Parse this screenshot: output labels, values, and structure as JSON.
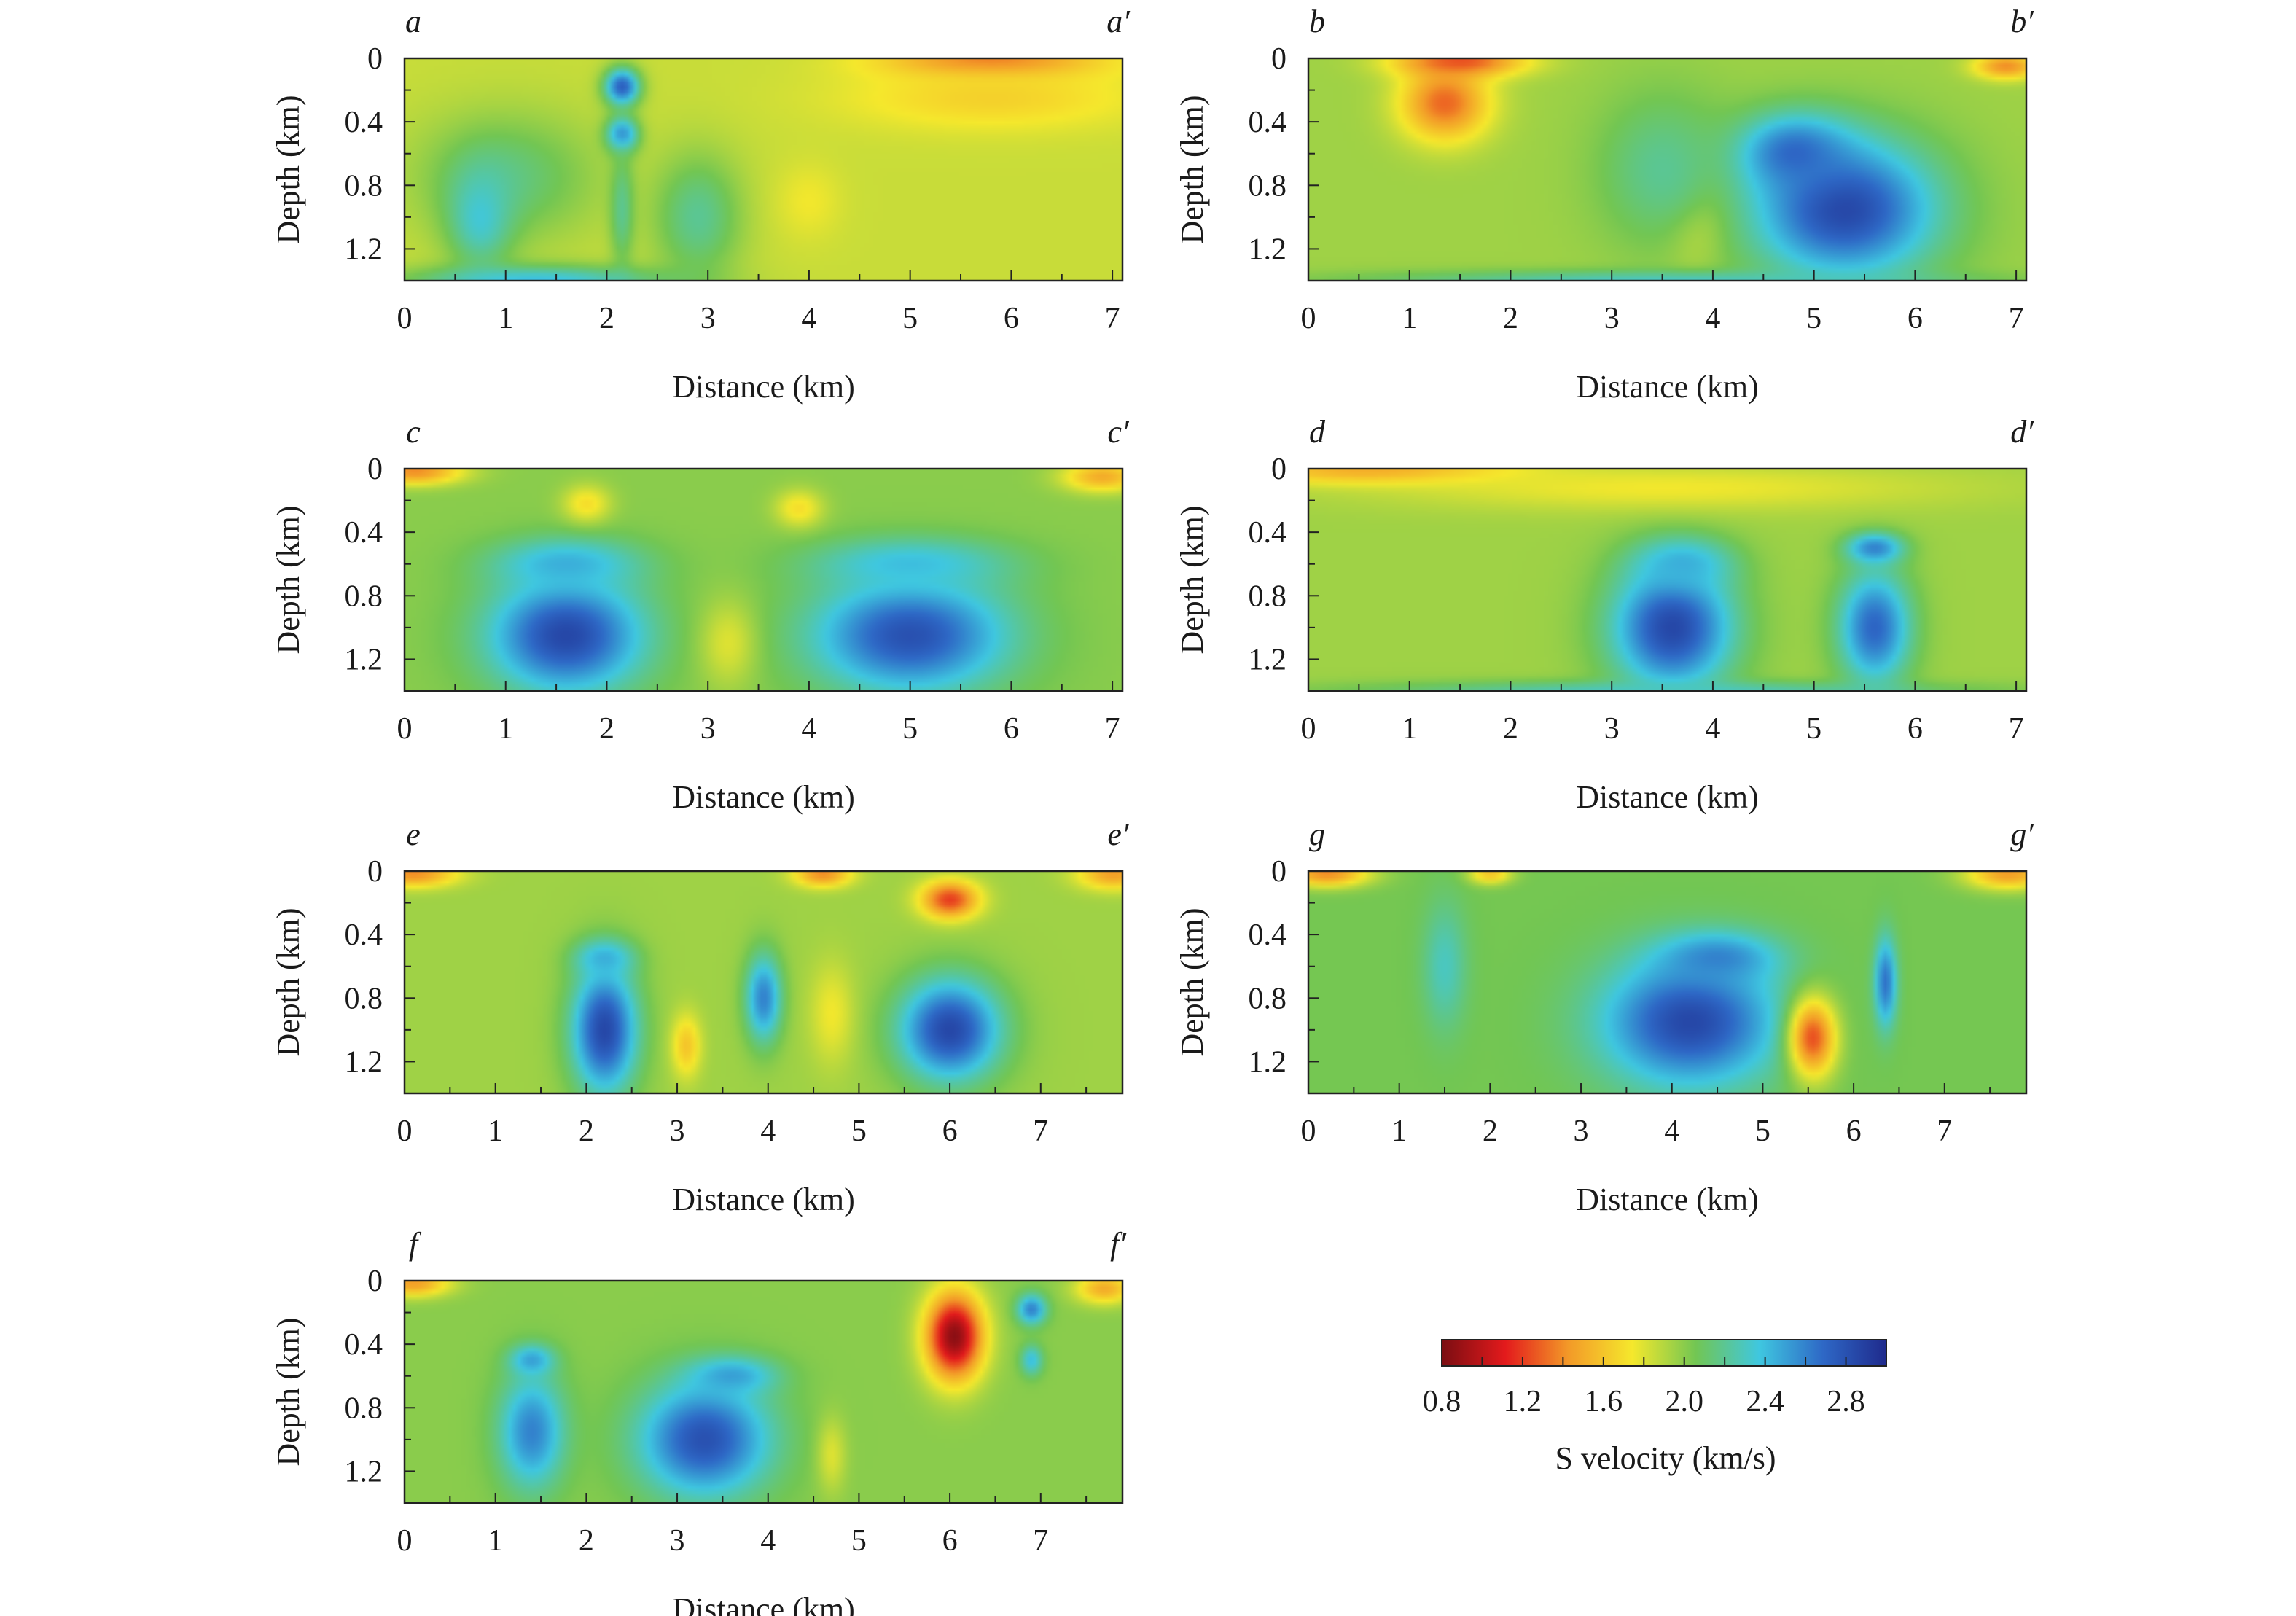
{
  "chart_data": [
    {
      "type": "heatmap",
      "id": "a",
      "label_left": "a",
      "label_right": "a′",
      "xlabel": "Distance (km)",
      "ylabel": "Depth (km)",
      "xlim": [
        0,
        7.1
      ],
      "ylim": [
        0,
        1.4
      ],
      "x_ticks": [
        "0",
        "1",
        "2",
        "3",
        "4",
        "5",
        "6",
        "7"
      ],
      "y_ticks": [
        "0",
        "0.4",
        "0.8",
        "1.2"
      ],
      "background_velocity": 1.85,
      "anomalies": [
        {
          "x": 2.15,
          "y": 0.18,
          "rx": 0.22,
          "ry": 0.15,
          "v": 2.75
        },
        {
          "x": 2.15,
          "y": 0.48,
          "rx": 0.2,
          "ry": 0.14,
          "v": 2.65
        },
        {
          "x": 2.15,
          "y": 0.95,
          "rx": 0.15,
          "ry": 0.45,
          "v": 2.2
        },
        {
          "x": 1.0,
          "y": 0.75,
          "rx": 1.1,
          "ry": 0.5,
          "v": 2.15
        },
        {
          "x": 0.75,
          "y": 1.0,
          "rx": 0.4,
          "ry": 0.4,
          "v": 2.35
        },
        {
          "x": 2.9,
          "y": 1.0,
          "rx": 0.55,
          "ry": 0.5,
          "v": 2.2
        },
        {
          "x": 4.0,
          "y": 0.9,
          "rx": 0.4,
          "ry": 0.3,
          "v": 1.75
        },
        {
          "x": 5.8,
          "y": 0.02,
          "rx": 1.3,
          "ry": 0.14,
          "v": 1.3
        },
        {
          "x": 5.8,
          "y": 0.25,
          "rx": 1.8,
          "ry": 0.25,
          "v": 1.65
        },
        {
          "x": 1.3,
          "y": 1.4,
          "rx": 1.6,
          "ry": 0.12,
          "v": 2.4
        }
      ]
    },
    {
      "type": "heatmap",
      "id": "b",
      "label_left": "b",
      "label_right": "b′",
      "xlabel": "Distance (km)",
      "ylabel": "Depth (km)",
      "xlim": [
        0,
        7.1
      ],
      "ylim": [
        0,
        1.4
      ],
      "x_ticks": [
        "0",
        "1",
        "2",
        "3",
        "4",
        "5",
        "6",
        "7"
      ],
      "y_ticks": [
        "0",
        "0.4",
        "0.8",
        "1.2"
      ],
      "background_velocity": 1.95,
      "anomalies": [
        {
          "x": 1.35,
          "y": 0.28,
          "rx": 0.55,
          "ry": 0.3,
          "v": 1.3
        },
        {
          "x": 1.5,
          "y": 0.02,
          "rx": 0.8,
          "ry": 0.12,
          "v": 1.25
        },
        {
          "x": 5.3,
          "y": 0.95,
          "rx": 1.15,
          "ry": 0.55,
          "v": 2.85
        },
        {
          "x": 4.8,
          "y": 0.6,
          "rx": 0.7,
          "ry": 0.3,
          "v": 2.7
        },
        {
          "x": 3.8,
          "y": 1.05,
          "rx": 0.35,
          "ry": 0.35,
          "v": 1.8
        },
        {
          "x": 3.5,
          "y": 0.7,
          "rx": 0.8,
          "ry": 0.6,
          "v": 2.2
        },
        {
          "x": 6.9,
          "y": 0.05,
          "rx": 0.4,
          "ry": 0.1,
          "v": 1.4
        },
        {
          "x": 3.5,
          "y": 1.4,
          "rx": 3.6,
          "ry": 0.08,
          "v": 2.3
        }
      ]
    },
    {
      "type": "heatmap",
      "id": "c",
      "label_left": "c",
      "label_right": "c′",
      "xlabel": "Distance (km)",
      "ylabel": "Depth (km)",
      "xlim": [
        0,
        7.1
      ],
      "ylim": [
        0,
        1.4
      ],
      "x_ticks": [
        "0",
        "1",
        "2",
        "3",
        "4",
        "5",
        "6",
        "7"
      ],
      "y_ticks": [
        "0",
        "0.4",
        "0.8",
        "1.2"
      ],
      "background_velocity": 2.0,
      "anomalies": [
        {
          "x": 1.6,
          "y": 1.05,
          "rx": 0.95,
          "ry": 0.45,
          "v": 2.85
        },
        {
          "x": 1.6,
          "y": 0.6,
          "rx": 0.9,
          "ry": 0.2,
          "v": 2.45
        },
        {
          "x": 5.0,
          "y": 1.05,
          "rx": 1.2,
          "ry": 0.45,
          "v": 2.8
        },
        {
          "x": 5.0,
          "y": 0.6,
          "rx": 1.2,
          "ry": 0.2,
          "v": 2.4
        },
        {
          "x": 3.2,
          "y": 1.1,
          "rx": 0.35,
          "ry": 0.35,
          "v": 1.8
        },
        {
          "x": 1.8,
          "y": 0.22,
          "rx": 0.3,
          "ry": 0.15,
          "v": 1.7
        },
        {
          "x": 3.9,
          "y": 0.25,
          "rx": 0.3,
          "ry": 0.15,
          "v": 1.7
        },
        {
          "x": 0.1,
          "y": 0.02,
          "rx": 0.6,
          "ry": 0.1,
          "v": 1.4
        },
        {
          "x": 6.9,
          "y": 0.05,
          "rx": 0.5,
          "ry": 0.12,
          "v": 1.5
        }
      ]
    },
    {
      "type": "heatmap",
      "id": "d",
      "label_left": "d",
      "label_right": "d′",
      "xlabel": "Distance (km)",
      "ylabel": "Depth (km)",
      "xlim": [
        0,
        7.1
      ],
      "ylim": [
        0,
        1.4
      ],
      "x_ticks": [
        "0",
        "1",
        "2",
        "3",
        "4",
        "5",
        "6",
        "7"
      ],
      "y_ticks": [
        "0",
        "0.4",
        "0.8",
        "1.2"
      ],
      "background_velocity": 1.95,
      "anomalies": [
        {
          "x": 3.6,
          "y": 1.0,
          "rx": 0.75,
          "ry": 0.5,
          "v": 2.85
        },
        {
          "x": 3.7,
          "y": 0.6,
          "rx": 0.6,
          "ry": 0.2,
          "v": 2.45
        },
        {
          "x": 5.6,
          "y": 1.0,
          "rx": 0.45,
          "ry": 0.45,
          "v": 2.7
        },
        {
          "x": 5.6,
          "y": 0.5,
          "rx": 0.35,
          "ry": 0.12,
          "v": 2.6
        },
        {
          "x": 0.7,
          "y": 0.02,
          "rx": 1.8,
          "ry": 0.1,
          "v": 1.45
        },
        {
          "x": 3.5,
          "y": 0.12,
          "rx": 3.6,
          "ry": 0.18,
          "v": 1.75
        },
        {
          "x": 3.5,
          "y": 1.4,
          "rx": 3.6,
          "ry": 0.08,
          "v": 2.3
        }
      ]
    },
    {
      "type": "heatmap",
      "id": "e",
      "label_left": "e",
      "label_right": "e′",
      "xlabel": "Distance (km)",
      "ylabel": "Depth (km)",
      "xlim": [
        0,
        7.9
      ],
      "ylim": [
        0,
        1.4
      ],
      "x_ticks": [
        "0",
        "1",
        "2",
        "3",
        "4",
        "5",
        "6",
        "7"
      ],
      "y_ticks": [
        "0",
        "0.4",
        "0.8",
        "1.2"
      ],
      "background_velocity": 1.95,
      "anomalies": [
        {
          "x": 2.2,
          "y": 1.0,
          "rx": 0.45,
          "ry": 0.5,
          "v": 2.85
        },
        {
          "x": 2.2,
          "y": 0.55,
          "rx": 0.4,
          "ry": 0.15,
          "v": 2.45
        },
        {
          "x": 6.0,
          "y": 1.0,
          "rx": 0.7,
          "ry": 0.4,
          "v": 2.85
        },
        {
          "x": 3.95,
          "y": 0.8,
          "rx": 0.25,
          "ry": 0.35,
          "v": 2.6
        },
        {
          "x": 3.1,
          "y": 1.1,
          "rx": 0.2,
          "ry": 0.25,
          "v": 1.6
        },
        {
          "x": 6.0,
          "y": 0.18,
          "rx": 0.4,
          "ry": 0.15,
          "v": 1.2
        },
        {
          "x": 4.6,
          "y": 0.02,
          "rx": 0.4,
          "ry": 0.1,
          "v": 1.4
        },
        {
          "x": 0.1,
          "y": 0.02,
          "rx": 0.6,
          "ry": 0.1,
          "v": 1.4
        },
        {
          "x": 7.8,
          "y": 0.02,
          "rx": 0.5,
          "ry": 0.12,
          "v": 1.45
        },
        {
          "x": 4.7,
          "y": 0.9,
          "rx": 0.3,
          "ry": 0.4,
          "v": 1.75
        }
      ]
    },
    {
      "type": "heatmap",
      "id": "g",
      "label_left": "g",
      "label_right": "g′",
      "xlabel": "Distance (km)",
      "ylabel": "Depth (km)",
      "xlim": [
        0,
        7.9
      ],
      "ylim": [
        0,
        1.4
      ],
      "x_ticks": [
        "0",
        "1",
        "2",
        "3",
        "4",
        "5",
        "6",
        "7"
      ],
      "y_ticks": [
        "0",
        "0.4",
        "0.8",
        "1.2"
      ],
      "background_velocity": 2.05,
      "anomalies": [
        {
          "x": 4.2,
          "y": 0.95,
          "rx": 1.2,
          "ry": 0.5,
          "v": 2.85
        },
        {
          "x": 4.5,
          "y": 0.55,
          "rx": 0.8,
          "ry": 0.2,
          "v": 2.6
        },
        {
          "x": 5.55,
          "y": 1.05,
          "rx": 0.33,
          "ry": 0.32,
          "v": 1.25
        },
        {
          "x": 6.35,
          "y": 0.7,
          "rx": 0.15,
          "ry": 0.35,
          "v": 2.65
        },
        {
          "x": 1.5,
          "y": 0.6,
          "rx": 0.3,
          "ry": 0.5,
          "v": 2.3
        },
        {
          "x": 0.2,
          "y": 0.02,
          "rx": 0.6,
          "ry": 0.1,
          "v": 1.4
        },
        {
          "x": 7.7,
          "y": 0.02,
          "rx": 0.6,
          "ry": 0.12,
          "v": 1.45
        },
        {
          "x": 2.0,
          "y": 0.02,
          "rx": 0.3,
          "ry": 0.08,
          "v": 1.6
        }
      ]
    },
    {
      "type": "heatmap",
      "id": "f",
      "label_left": "f",
      "label_right": "f′",
      "xlabel": "Distance (km)",
      "ylabel": "Depth (km)",
      "xlim": [
        0,
        7.9
      ],
      "ylim": [
        0,
        1.4
      ],
      "x_ticks": [
        "0",
        "1",
        "2",
        "3",
        "4",
        "5",
        "6",
        "7"
      ],
      "y_ticks": [
        "0",
        "0.4",
        "0.8",
        "1.2"
      ],
      "background_velocity": 2.0,
      "anomalies": [
        {
          "x": 6.05,
          "y": 0.35,
          "rx": 0.4,
          "ry": 0.35,
          "v": 0.85
        },
        {
          "x": 3.3,
          "y": 1.0,
          "rx": 0.9,
          "ry": 0.45,
          "v": 2.8
        },
        {
          "x": 3.6,
          "y": 0.6,
          "rx": 0.6,
          "ry": 0.15,
          "v": 2.5
        },
        {
          "x": 1.4,
          "y": 0.95,
          "rx": 0.45,
          "ry": 0.45,
          "v": 2.6
        },
        {
          "x": 1.4,
          "y": 0.5,
          "rx": 0.3,
          "ry": 0.12,
          "v": 2.5
        },
        {
          "x": 6.9,
          "y": 0.18,
          "rx": 0.2,
          "ry": 0.12,
          "v": 2.6
        },
        {
          "x": 6.9,
          "y": 0.5,
          "rx": 0.15,
          "ry": 0.12,
          "v": 2.4
        },
        {
          "x": 4.7,
          "y": 1.1,
          "rx": 0.2,
          "ry": 0.3,
          "v": 1.8
        },
        {
          "x": 0.1,
          "y": 0.02,
          "rx": 0.5,
          "ry": 0.1,
          "v": 1.45
        },
        {
          "x": 7.7,
          "y": 0.05,
          "rx": 0.4,
          "ry": 0.12,
          "v": 1.5
        }
      ]
    }
  ],
  "colorbar": {
    "title": "S velocity (km/s)",
    "vmin": 0.8,
    "vmax": 3.0,
    "tick_values": [
      0.8,
      1.2,
      1.6,
      2.0,
      2.4,
      2.8
    ],
    "tick_labels": [
      "0.8",
      "1.2",
      "1.6",
      "2.0",
      "2.4",
      "2.8"
    ],
    "colors": [
      "#7a0d12",
      "#e31a1c",
      "#f39a28",
      "#f5e82c",
      "#72c653",
      "#3fc7e0",
      "#2e68c6",
      "#1f2a8c"
    ]
  }
}
